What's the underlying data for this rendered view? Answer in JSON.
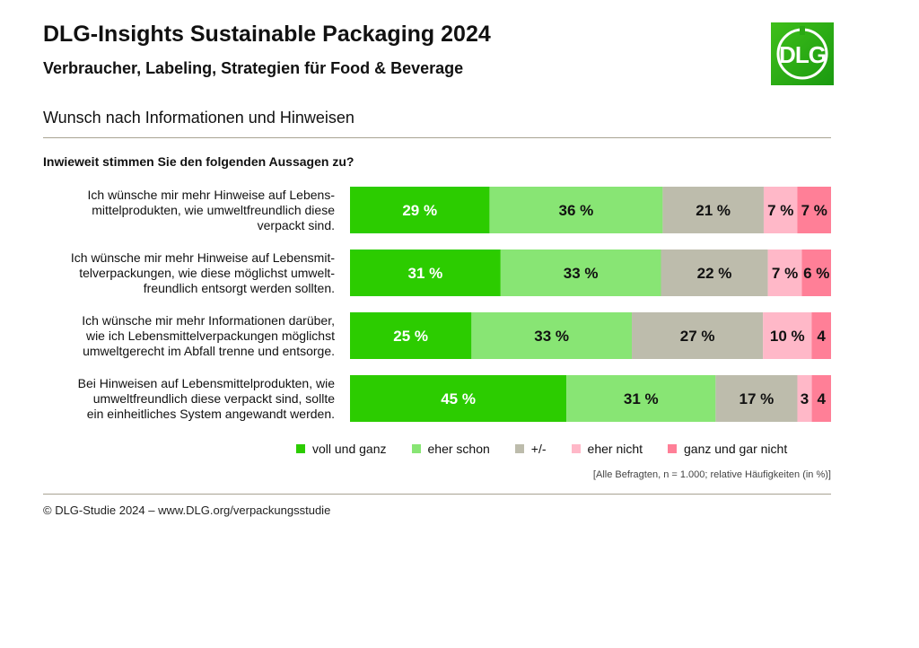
{
  "header": {
    "title": "DLG-Insights Sustainable Packaging 2024",
    "subtitle": "Verbraucher, Labeling, Strategien für Food & Beverage",
    "logo_text": "DLG"
  },
  "section_title": "Wunsch nach Informationen und Hinweisen",
  "footer": "© DLG-Studie 2024 – www.DLG.org/verpackungsstudie",
  "chart_data": {
    "type": "bar",
    "orientation": "horizontal-stacked-100",
    "title": "Inwieweit stimmen Sie den folgenden Aussagen zu?",
    "note": "[Alle Befragten, n = 1.000; relative Häufigkeiten (in %)]",
    "legend_position": "bottom",
    "grid": false,
    "categories": [
      [
        "Ich wünsche mir mehr Hinweise auf Lebens-",
        "mittelprodukten, wie umweltfreundlich diese",
        "verpackt sind."
      ],
      [
        "Ich wünsche mir mehr Hinweise auf Lebensmit-",
        "telverpackungen, wie diese möglichst umwelt-",
        "freundlich entsorgt werden sollten."
      ],
      [
        "Ich wünsche mir mehr Informationen darüber,",
        "wie ich Lebensmittelverpackungen möglichst",
        "umweltgerecht im Abfall trenne und entsorge."
      ],
      [
        "Bei Hinweisen auf Lebensmittelprodukten, wie",
        "umweltfreundlich diese verpackt sind, sollte",
        "ein einheitliches System angewandt werden."
      ]
    ],
    "series": [
      {
        "name": "voll und ganz",
        "color": "#2ccc00",
        "label_color": "#ffffff",
        "values": [
          29,
          31,
          25,
          45
        ],
        "labels": [
          "29 %",
          "31 %",
          "25 %",
          "45 %"
        ]
      },
      {
        "name": "eher schon",
        "color": "#88e574",
        "label_color": "#111111",
        "values": [
          36,
          33,
          33,
          31
        ],
        "labels": [
          "36 %",
          "33 %",
          "33 %",
          "31 %"
        ]
      },
      {
        "name": "+/-",
        "color": "#bdbcac",
        "label_color": "#111111",
        "values": [
          21,
          22,
          27,
          17
        ],
        "labels": [
          "21 %",
          "22 %",
          "27 %",
          "17 %"
        ]
      },
      {
        "name": "eher nicht",
        "color": "#ffb8c8",
        "label_color": "#111111",
        "values": [
          7,
          7,
          10,
          3
        ],
        "labels": [
          "7 %",
          "7 %",
          "10 %",
          "3"
        ]
      },
      {
        "name": "ganz und gar nicht",
        "color": "#ff7f97",
        "label_color": "#111111",
        "values": [
          7,
          6,
          4,
          4
        ],
        "labels": [
          "7 %",
          "6 %",
          "4",
          "4"
        ]
      }
    ]
  }
}
